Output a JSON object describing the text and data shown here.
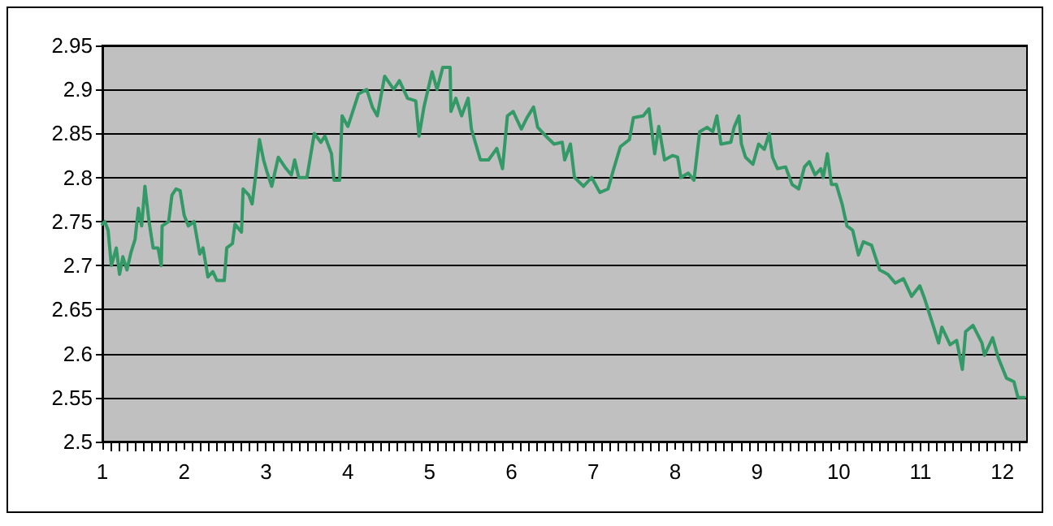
{
  "chart_data": {
    "type": "line",
    "grid": "y",
    "marker": "none",
    "line_style": "solid",
    "xlim": [
      1,
      12.3
    ],
    "xticks": [
      1,
      2,
      3,
      4,
      5,
      6,
      7,
      8,
      9,
      10,
      11,
      12
    ],
    "ylim": [
      2.5,
      2.95
    ],
    "yticks": [
      2.5,
      2.55,
      2.6,
      2.65,
      2.7,
      2.75,
      2.8,
      2.85,
      2.9,
      2.95
    ],
    "series": [
      {
        "color": "#339966",
        "x": [
          1.0,
          1.03,
          1.07,
          1.11,
          1.17,
          1.21,
          1.25,
          1.3,
          1.35,
          1.4,
          1.44,
          1.48,
          1.52,
          1.57,
          1.62,
          1.68,
          1.72,
          1.73,
          1.81,
          1.85,
          1.9,
          1.95,
          2.0,
          2.05,
          2.12,
          2.19,
          2.23,
          2.29,
          2.35,
          2.4,
          2.49,
          2.52,
          2.59,
          2.62,
          2.7,
          2.72,
          2.79,
          2.83,
          2.87,
          2.92,
          2.97,
          3.01,
          3.07,
          3.15,
          3.23,
          3.31,
          3.35,
          3.4,
          3.5,
          3.59,
          3.67,
          3.72,
          3.8,
          3.83,
          3.9,
          3.93,
          4.0,
          4.13,
          4.23,
          4.3,
          4.36,
          4.45,
          4.56,
          4.63,
          4.73,
          4.83,
          4.87,
          4.93,
          5.03,
          5.09,
          5.16,
          5.25,
          5.26,
          5.32,
          5.39,
          5.47,
          5.51,
          5.62,
          5.72,
          5.82,
          5.89,
          5.95,
          6.02,
          6.12,
          6.19,
          6.27,
          6.32,
          6.42,
          6.52,
          6.62,
          6.65,
          6.72,
          6.77,
          6.88,
          6.98,
          7.08,
          7.18,
          7.25,
          7.33,
          7.44,
          7.49,
          7.61,
          7.68,
          7.75,
          7.8,
          7.87,
          7.97,
          8.03,
          8.07,
          8.16,
          8.23,
          8.3,
          8.39,
          8.46,
          8.51,
          8.56,
          8.68,
          8.72,
          8.78,
          8.81,
          8.86,
          8.95,
          9.02,
          9.09,
          9.15,
          9.19,
          9.25,
          9.35,
          9.43,
          9.51,
          9.58,
          9.64,
          9.71,
          9.78,
          9.81,
          9.86,
          9.91,
          9.97,
          10.04,
          10.1,
          10.17,
          10.24,
          10.3,
          10.4,
          10.5,
          10.6,
          10.69,
          10.79,
          10.89,
          10.99,
          11.05,
          11.16,
          11.22,
          11.26,
          11.36,
          11.44,
          11.51,
          11.55,
          11.64,
          11.75,
          11.78,
          11.88,
          11.95,
          12.05,
          12.14,
          12.19,
          12.27
        ],
        "values": [
          2.747,
          2.75,
          2.74,
          2.7,
          2.72,
          2.69,
          2.71,
          2.695,
          2.715,
          2.73,
          2.765,
          2.745,
          2.79,
          2.75,
          2.72,
          2.72,
          2.7,
          2.745,
          2.75,
          2.78,
          2.787,
          2.785,
          2.757,
          2.745,
          2.75,
          2.713,
          2.72,
          2.687,
          2.693,
          2.683,
          2.683,
          2.72,
          2.725,
          2.747,
          2.738,
          2.787,
          2.78,
          2.77,
          2.8,
          2.843,
          2.82,
          2.807,
          2.79,
          2.823,
          2.812,
          2.803,
          2.82,
          2.8,
          2.8,
          2.85,
          2.84,
          2.847,
          2.827,
          2.797,
          2.797,
          2.87,
          2.858,
          2.895,
          2.9,
          2.88,
          2.87,
          2.915,
          2.9,
          2.91,
          2.89,
          2.887,
          2.847,
          2.88,
          2.92,
          2.9,
          2.925,
          2.925,
          2.875,
          2.89,
          2.87,
          2.89,
          2.855,
          2.82,
          2.82,
          2.833,
          2.81,
          2.87,
          2.875,
          2.855,
          2.868,
          2.88,
          2.857,
          2.847,
          2.838,
          2.84,
          2.82,
          2.838,
          2.8,
          2.79,
          2.8,
          2.783,
          2.787,
          2.81,
          2.835,
          2.843,
          2.868,
          2.87,
          2.878,
          2.827,
          2.858,
          2.82,
          2.825,
          2.823,
          2.8,
          2.805,
          2.797,
          2.852,
          2.857,
          2.852,
          2.87,
          2.838,
          2.84,
          2.857,
          2.87,
          2.838,
          2.823,
          2.815,
          2.838,
          2.832,
          2.85,
          2.823,
          2.81,
          2.812,
          2.792,
          2.787,
          2.812,
          2.818,
          2.803,
          2.81,
          2.8,
          2.827,
          2.792,
          2.792,
          2.77,
          2.745,
          2.74,
          2.712,
          2.727,
          2.723,
          2.695,
          2.69,
          2.68,
          2.685,
          2.665,
          2.677,
          2.662,
          2.63,
          2.612,
          2.63,
          2.61,
          2.615,
          2.582,
          2.625,
          2.632,
          2.612,
          2.598,
          2.618,
          2.595,
          2.572,
          2.568,
          2.55,
          2.55
        ]
      }
    ]
  }
}
